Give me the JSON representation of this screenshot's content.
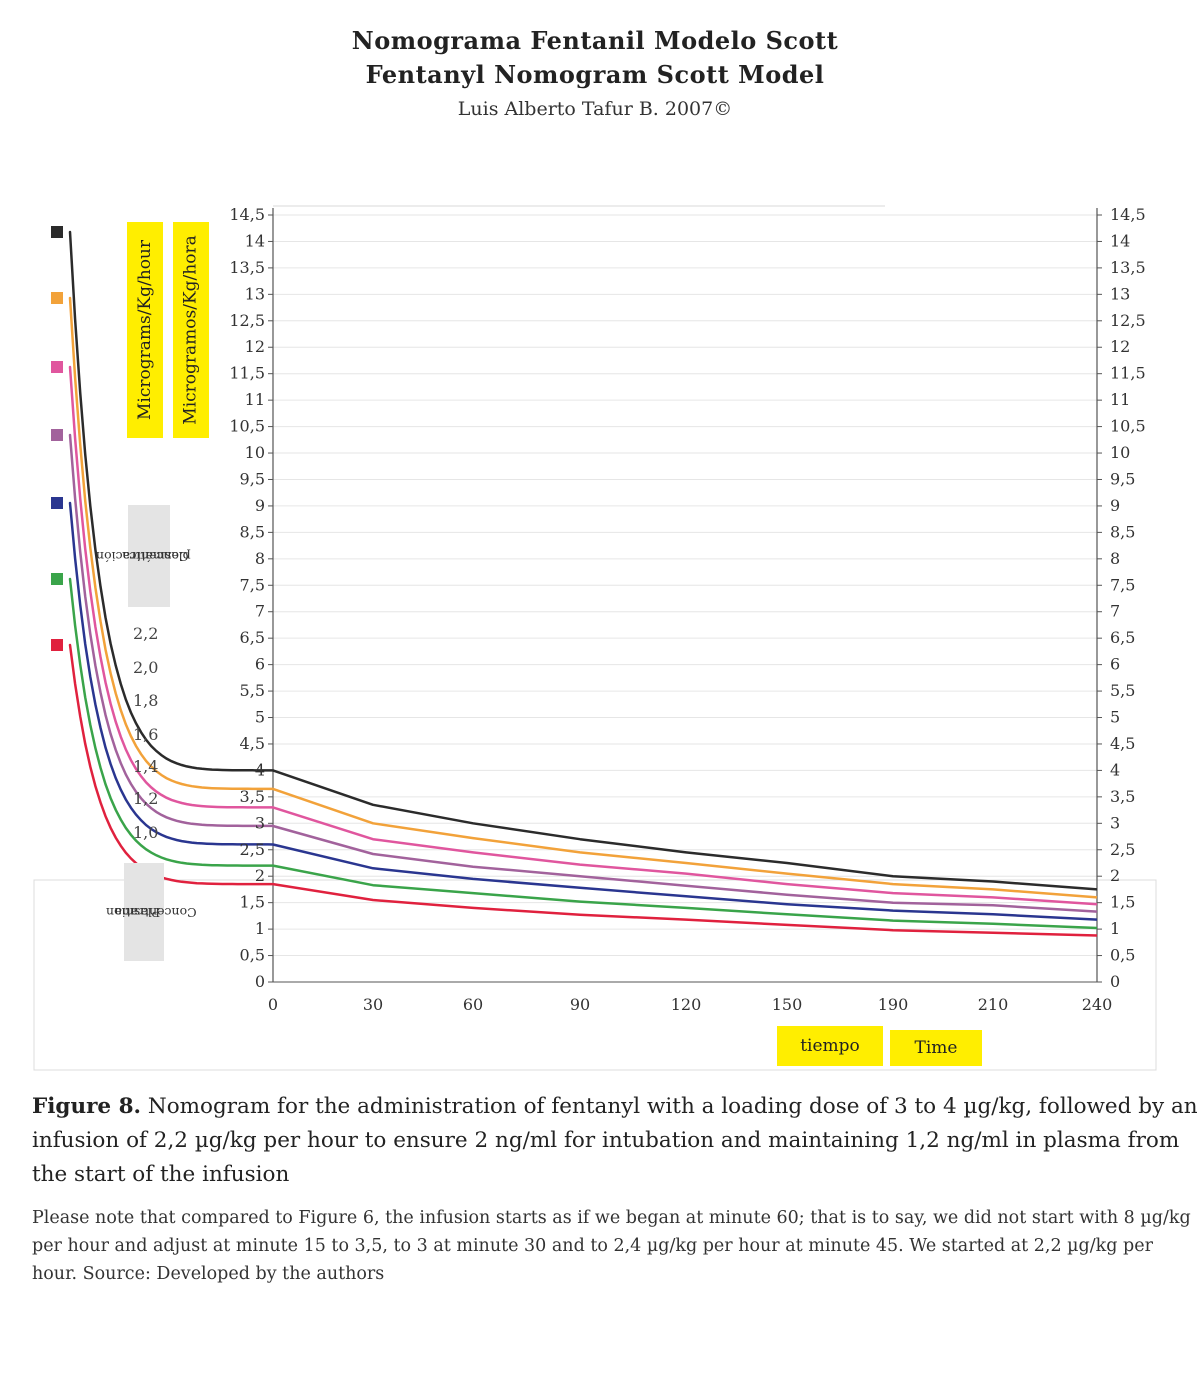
{
  "header": {
    "title_es": "Nomograma Fentanil Modelo Scott",
    "title_en": "Fentanyl Nomogram Scott Model",
    "author": "Luis Alberto Tafur B. 2007©"
  },
  "labels": {
    "ylabel_en": "Micrograms/Kg/hour",
    "ylabel_es": "Microgramos/Kg/hora",
    "conc_es_1": "Concentración",
    "conc_es_2": "plasmática",
    "conc_en_1": "Plasma",
    "conc_en_2": "Concentration",
    "xlabel_es": "tiempo",
    "xlabel_en": "Time"
  },
  "colors": {
    "black": "#2b2b2b",
    "orange": "#f2a23a",
    "pink": "#e0569e",
    "purple": "#a2629c",
    "navy": "#2a3690",
    "green": "#3aa44a",
    "red": "#e0213e"
  },
  "chart_data": {
    "type": "line",
    "y_ticks": [
      "0",
      "0,5",
      "1",
      "1,5",
      "2",
      "2,5",
      "3",
      "3,5",
      "4",
      "4,5",
      "5",
      "5,5",
      "6",
      "6,5",
      "7",
      "7,5",
      "8",
      "8,5",
      "9",
      "9,5",
      "10",
      "10,5",
      "11",
      "11,5",
      "12",
      "12,5",
      "13",
      "13,5",
      "14",
      "14,5"
    ],
    "x_ticks": [
      "0",
      "30",
      "60",
      "90",
      "120",
      "150",
      "190",
      "210",
      "240"
    ],
    "ylim": [
      0,
      14.5
    ],
    "grid": true,
    "conc_ticks": [
      "2,2",
      "2,0",
      "1,8",
      "1,6",
      "1,4",
      "1,2",
      "1,0"
    ],
    "series": [
      {
        "color": "black",
        "conc": "2,2",
        "x": [
          0,
          30,
          60,
          90,
          120,
          150,
          190,
          210,
          240
        ],
        "y": [
          4.0,
          3.35,
          3.0,
          2.7,
          2.45,
          2.25,
          2.0,
          1.9,
          1.75
        ]
      },
      {
        "color": "orange",
        "conc": "2,0",
        "x": [
          0,
          30,
          60,
          90,
          120,
          150,
          190,
          210,
          240
        ],
        "y": [
          3.65,
          3.0,
          2.72,
          2.45,
          2.25,
          2.05,
          1.85,
          1.75,
          1.6
        ]
      },
      {
        "color": "pink",
        "conc": "1,8",
        "x": [
          0,
          30,
          60,
          90,
          120,
          150,
          190,
          210,
          240
        ],
        "y": [
          3.3,
          2.7,
          2.45,
          2.22,
          2.05,
          1.85,
          1.68,
          1.6,
          1.47
        ]
      },
      {
        "color": "purple",
        "conc": "1,6",
        "x": [
          0,
          30,
          60,
          90,
          120,
          150,
          190,
          210,
          240
        ],
        "y": [
          2.95,
          2.42,
          2.18,
          2.0,
          1.82,
          1.65,
          1.5,
          1.45,
          1.33
        ]
      },
      {
        "color": "navy",
        "conc": "1,4",
        "x": [
          0,
          30,
          60,
          90,
          120,
          150,
          190,
          210,
          240
        ],
        "y": [
          2.6,
          2.15,
          1.95,
          1.78,
          1.62,
          1.47,
          1.35,
          1.28,
          1.18
        ]
      },
      {
        "color": "green",
        "conc": "1,2",
        "x": [
          0,
          30,
          60,
          90,
          120,
          150,
          190,
          210,
          240
        ],
        "y": [
          2.2,
          1.83,
          1.68,
          1.52,
          1.4,
          1.28,
          1.16,
          1.1,
          1.02
        ]
      },
      {
        "color": "red",
        "conc": "1,0",
        "x": [
          0,
          30,
          60,
          90,
          120,
          150,
          190,
          210,
          240
        ],
        "y": [
          1.85,
          1.55,
          1.4,
          1.27,
          1.18,
          1.08,
          0.98,
          0.93,
          0.88
        ]
      }
    ]
  },
  "caption": {
    "figure_label": "Figure 8.",
    "text": "Nomogram for the administration of fentanyl with a loading dose of 3 to 4 µg/kg, followed by an infusion of 2,2 µg/kg per hour to ensure 2 ng/ml for intubation and maintaining 1,2 ng/ml in plasma from the start of the infusion",
    "note": "Please note that compared to Figure 6, the infusion starts as if we began at minute 60; that is to say, we did not start with 8 µg/kg per hour and adjust at minute 15 to 3,5, to 3 at minute 30 and to 2,4 µg/kg per hour at minute 45. We started at 2,2 µg/kg per hour. Source: Developed by the authors"
  }
}
